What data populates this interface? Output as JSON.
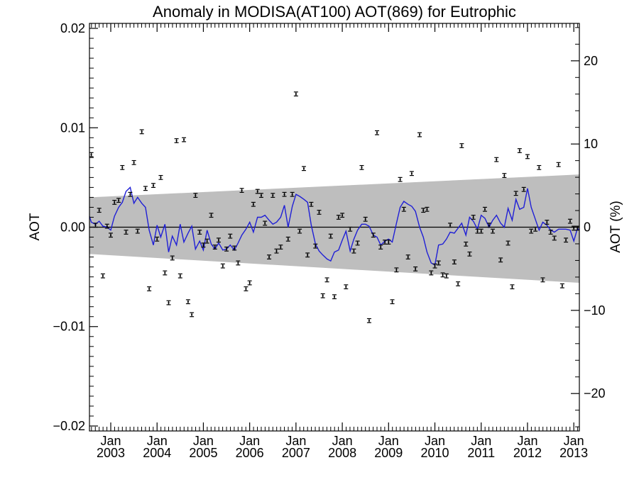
{
  "chart_data": {
    "type": "scatter",
    "title": "Anomaly in MODISA(AT100) AOT(869) for Eutrophic",
    "ylabel": "AOT",
    "ylabel_right": "AOT (%)",
    "xlabel": "",
    "x_tick_labels": [
      {
        "year": 2003,
        "month_label": "Jan",
        "year_label": "2003"
      },
      {
        "year": 2004,
        "month_label": "Jan",
        "year_label": "2004"
      },
      {
        "year": 2005,
        "month_label": "Jan",
        "year_label": "2005"
      },
      {
        "year": 2006,
        "month_label": "Jan",
        "year_label": "2006"
      },
      {
        "year": 2007,
        "month_label": "Jan",
        "year_label": "2007"
      },
      {
        "year": 2008,
        "month_label": "Jan",
        "year_label": "2008"
      },
      {
        "year": 2009,
        "month_label": "Jan",
        "year_label": "2009"
      },
      {
        "year": 2010,
        "month_label": "Jan",
        "year_label": "2010"
      },
      {
        "year": 2011,
        "month_label": "Jan",
        "year_label": "2011"
      },
      {
        "year": 2012,
        "month_label": "Jan",
        "year_label": "2012"
      },
      {
        "year": 2013,
        "month_label": "Jan",
        "year_label": "2013"
      }
    ],
    "xlim": [
      2002.54,
      2013.12
    ],
    "ylim": [
      -0.0205,
      0.0205
    ],
    "y_ticks": [
      -0.02,
      -0.01,
      0.0,
      0.01,
      0.02
    ],
    "y_tick_labels": [
      "−0.02",
      "−0.01",
      "0.00",
      "0.01",
      "0.02"
    ],
    "y2lim": [
      -24.5,
      24.5
    ],
    "y2_ticks": [
      -20,
      -10,
      0,
      10,
      20
    ],
    "y2_tick_labels": [
      "−20",
      "−10",
      "0",
      "10",
      "20"
    ],
    "colors": {
      "points": "#000000",
      "smooth_line": "#1f1fd6",
      "band": "#bebebe",
      "zero_line": "#000000"
    },
    "band": {
      "x": [
        2002.54,
        2013.12
      ],
      "upper": [
        0.003,
        0.0053
      ],
      "lower": [
        -0.0027,
        -0.0056
      ]
    },
    "grid": false,
    "series": [
      {
        "kind": "monthly_points_with_errorbars",
        "errorbar": 0.0002,
        "x": [
          2002.58,
          2002.67,
          2002.75,
          2002.83,
          2002.92,
          2003.0,
          2003.08,
          2003.17,
          2003.25,
          2003.33,
          2003.42,
          2003.5,
          2003.58,
          2003.67,
          2003.75,
          2003.83,
          2003.92,
          2004.0,
          2004.08,
          2004.17,
          2004.25,
          2004.33,
          2004.42,
          2004.5,
          2004.58,
          2004.67,
          2004.75,
          2004.83,
          2004.92,
          2005.0,
          2005.08,
          2005.17,
          2005.25,
          2005.33,
          2005.42,
          2005.5,
          2005.58,
          2005.67,
          2005.75,
          2005.83,
          2005.92,
          2006.0,
          2006.08,
          2006.17,
          2006.25,
          2006.33,
          2006.42,
          2006.5,
          2006.58,
          2006.67,
          2006.75,
          2006.83,
          2006.92,
          2007.0,
          2007.08,
          2007.17,
          2007.25,
          2007.33,
          2007.42,
          2007.5,
          2007.58,
          2007.67,
          2007.75,
          2007.83,
          2007.92,
          2008.0,
          2008.08,
          2008.17,
          2008.25,
          2008.33,
          2008.42,
          2008.5,
          2008.58,
          2008.67,
          2008.75,
          2008.83,
          2008.92,
          2009.0,
          2009.08,
          2009.17,
          2009.25,
          2009.33,
          2009.42,
          2009.5,
          2009.58,
          2009.67,
          2009.75,
          2009.83,
          2009.92,
          2010.0,
          2010.08,
          2010.17,
          2010.25,
          2010.33,
          2010.42,
          2010.5,
          2010.58,
          2010.67,
          2010.75,
          2010.83,
          2010.92,
          2011.0,
          2011.08,
          2011.17,
          2011.25,
          2011.33,
          2011.42,
          2011.5,
          2011.58,
          2011.67,
          2011.75,
          2011.83,
          2011.92,
          2012.0,
          2012.08,
          2012.17,
          2012.25,
          2012.33,
          2012.42,
          2012.5,
          2012.58,
          2012.67,
          2012.75,
          2012.83,
          2012.92,
          2013.0,
          2013.08
        ],
        "y": [
          0.0073,
          0.0002,
          0.0017,
          -0.0049,
          0.0001,
          -0.0008,
          0.0025,
          0.0027,
          0.006,
          -0.0005,
          0.0033,
          0.0065,
          -0.0004,
          0.0096,
          0.0039,
          -0.0062,
          0.0042,
          -0.0012,
          0.005,
          -0.0046,
          -0.0076,
          -0.0031,
          0.0087,
          -0.0049,
          0.0088,
          -0.0075,
          -0.0088,
          0.0032,
          -0.0005,
          -0.0018,
          -0.0014,
          0.0012,
          -0.002,
          -0.0013,
          -0.0039,
          -0.0022,
          -0.0009,
          -0.0021,
          -0.0036,
          0.0037,
          -0.0062,
          -0.0056,
          0.0023,
          0.0036,
          0.0032,
          0.0004,
          -0.003,
          0.0032,
          -0.0024,
          -0.002,
          0.0033,
          -0.0012,
          0.0033,
          0.0134,
          -0.0004,
          0.0059,
          -0.0028,
          0.0023,
          -0.0019,
          0.0015,
          -0.0069,
          -0.0053,
          -0.0009,
          -0.007,
          0.001,
          0.0012,
          -0.006,
          -0.0002,
          -0.0024,
          -0.0016,
          0.006,
          0.0008,
          -0.0094,
          -0.0008,
          0.0095,
          -0.002,
          -0.0015,
          -0.0015,
          -0.0075,
          -0.0043,
          0.0048,
          0.0018,
          -0.003,
          0.0054,
          -0.0042,
          0.0093,
          0.0017,
          0.0018,
          -0.0046,
          -0.0039,
          -0.0036,
          -0.0048,
          -0.0049,
          0.0002,
          -0.0035,
          -0.0057,
          0.0082,
          -0.0017,
          -0.0027,
          0.001,
          -0.0004,
          -0.0004,
          0.0018,
          0.0002,
          -0.0004,
          0.0068,
          -0.0033,
          0.0052,
          -0.0016,
          -0.006,
          0.0034,
          0.0077,
          0.0038,
          0.0071,
          -0.0004,
          -0.0002,
          0.006,
          -0.0053,
          0.0005,
          -0.0005,
          -0.0011,
          0.0063,
          -0.0059,
          -0.0013,
          0.0006,
          -0.0001,
          -0.0001
        ]
      },
      {
        "kind": "smoothed_line",
        "x": [
          2002.54,
          2002.58,
          2002.67,
          2002.75,
          2002.83,
          2002.92,
          2003.0,
          2003.08,
          2003.17,
          2003.25,
          2003.33,
          2003.42,
          2003.5,
          2003.58,
          2003.67,
          2003.75,
          2003.83,
          2003.92,
          2004.0,
          2004.08,
          2004.17,
          2004.25,
          2004.33,
          2004.42,
          2004.5,
          2004.58,
          2004.67,
          2004.75,
          2004.83,
          2004.92,
          2005.0,
          2005.08,
          2005.17,
          2005.25,
          2005.33,
          2005.42,
          2005.5,
          2005.58,
          2005.67,
          2005.75,
          2005.83,
          2005.92,
          2006.0,
          2006.08,
          2006.17,
          2006.25,
          2006.33,
          2006.42,
          2006.5,
          2006.58,
          2006.67,
          2006.75,
          2006.83,
          2006.92,
          2007.0,
          2007.08,
          2007.17,
          2007.25,
          2007.33,
          2007.42,
          2007.5,
          2007.58,
          2007.67,
          2007.75,
          2007.83,
          2007.92,
          2008.0,
          2008.08,
          2008.17,
          2008.25,
          2008.33,
          2008.42,
          2008.5,
          2008.58,
          2008.67,
          2008.75,
          2008.83,
          2008.92,
          2009.0,
          2009.08,
          2009.17,
          2009.25,
          2009.33,
          2009.42,
          2009.5,
          2009.58,
          2009.67,
          2009.75,
          2009.83,
          2009.92,
          2010.0,
          2010.08,
          2010.17,
          2010.25,
          2010.33,
          2010.42,
          2010.5,
          2010.58,
          2010.67,
          2010.75,
          2010.83,
          2010.92,
          2011.0,
          2011.08,
          2011.17,
          2011.25,
          2011.33,
          2011.42,
          2011.5,
          2011.58,
          2011.67,
          2011.75,
          2011.83,
          2011.92,
          2012.0,
          2012.08,
          2012.17,
          2012.25,
          2012.33,
          2012.42,
          2012.5,
          2012.58,
          2012.67,
          2012.75,
          2012.83,
          2012.92,
          2013.0,
          2013.08,
          2013.12
        ],
        "y": [
          0.0011,
          0.0005,
          0.0003,
          0.0006,
          0.0001,
          0.0,
          -0.0003,
          0.0011,
          0.002,
          0.0025,
          0.0036,
          0.004,
          0.0024,
          0.003,
          0.0024,
          0.002,
          -0.0003,
          -0.0018,
          0.0002,
          -0.001,
          0.0003,
          -0.0025,
          -0.0009,
          -0.0018,
          0.0003,
          -0.0015,
          -0.0006,
          0.0001,
          -0.0022,
          -0.0014,
          -0.0023,
          -0.0003,
          -0.0017,
          -0.0022,
          -0.0016,
          -0.0023,
          -0.0022,
          -0.0018,
          -0.0023,
          -0.0016,
          -0.0008,
          -0.0002,
          0.0005,
          -0.0005,
          0.001,
          0.001,
          0.0012,
          0.0007,
          0.0003,
          0.0005,
          0.001,
          0.0022,
          0.0,
          0.0021,
          0.0033,
          0.0031,
          0.0028,
          0.0025,
          0.0002,
          -0.0017,
          -0.0024,
          -0.0028,
          -0.0032,
          -0.0034,
          -0.0025,
          -0.0023,
          -0.0013,
          -0.0004,
          -0.0024,
          -0.0012,
          -0.0003,
          0.0003,
          0.0003,
          0.0001,
          -0.0008,
          -0.001,
          -0.0018,
          -0.0014,
          -0.0012,
          -0.0015,
          0.0004,
          0.002,
          0.0026,
          0.0023,
          0.0021,
          0.0016,
          0.0,
          -0.001,
          -0.0025,
          -0.0036,
          -0.0038,
          -0.0018,
          -0.0017,
          -0.0012,
          -0.0005,
          -0.0006,
          -0.0001,
          0.0004,
          -0.0008,
          0.001,
          0.0006,
          -0.0002,
          0.0012,
          0.0009,
          0.0,
          0.0007,
          0.0012,
          0.0004,
          0.0,
          0.0019,
          0.0007,
          0.0028,
          0.0018,
          0.002,
          0.0039,
          0.002,
          0.0008,
          -0.0003,
          0.0005,
          0.0002,
          -0.0003,
          -0.0005,
          -0.0002,
          -0.0002,
          -0.0002,
          -0.0003,
          -0.0014,
          -0.0001,
          -0.0003
        ]
      }
    ]
  }
}
